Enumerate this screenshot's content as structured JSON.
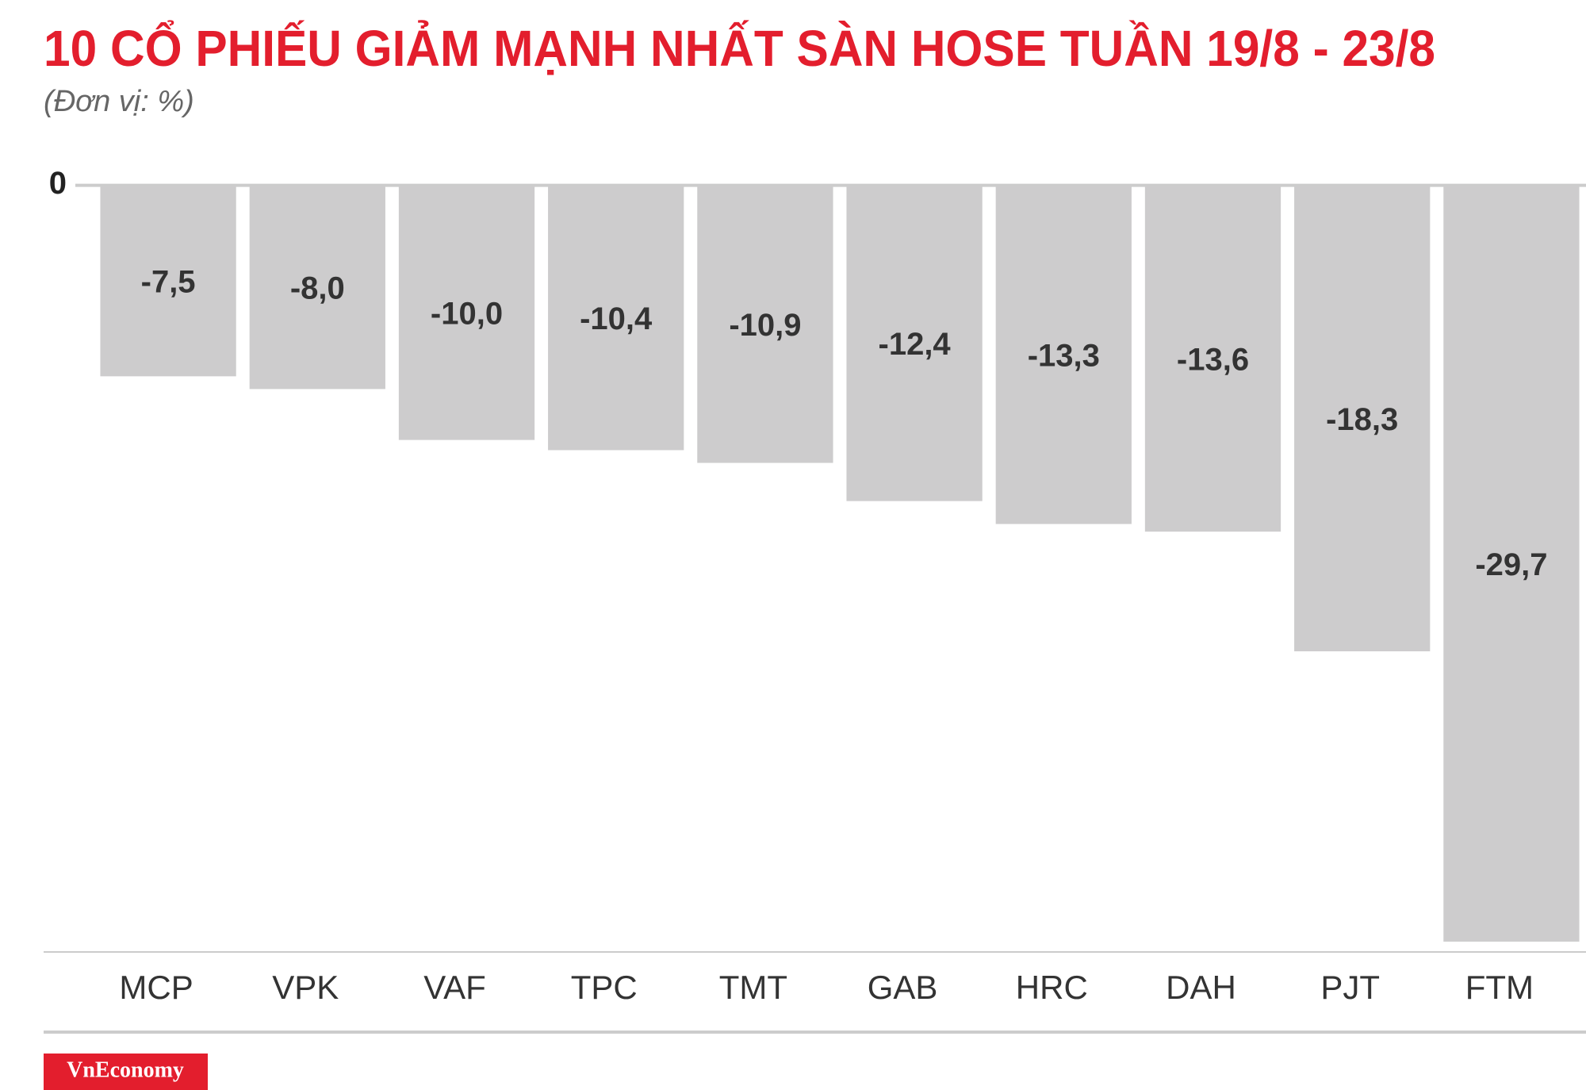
{
  "chart_data": {
    "type": "bar",
    "title": "10 CỔ PHIẾU GIẢM MẠNH NHẤT SÀN HOSE TUẦN 19/8 - 23/8",
    "subtitle": "(Đơn vị: %)",
    "categories": [
      "MCP",
      "VPK",
      "VAF",
      "TPC",
      "TMT",
      "GAB",
      "HRC",
      "DAH",
      "PJT",
      "FTM"
    ],
    "values": [
      -7.5,
      -8.0,
      -10.0,
      -10.4,
      -10.9,
      -12.4,
      -13.3,
      -13.6,
      -18.3,
      -29.7
    ],
    "value_labels": [
      "-7,5",
      "-8,0",
      "-10,0",
      "-10,4",
      "-10,9",
      "-12,4",
      "-13,3",
      "-13,6",
      "-18,3",
      "-29,7"
    ],
    "color": "#cdcccd",
    "ylim": [
      -30,
      0
    ],
    "yticks": [
      0
    ],
    "source": "VnEconomy"
  }
}
